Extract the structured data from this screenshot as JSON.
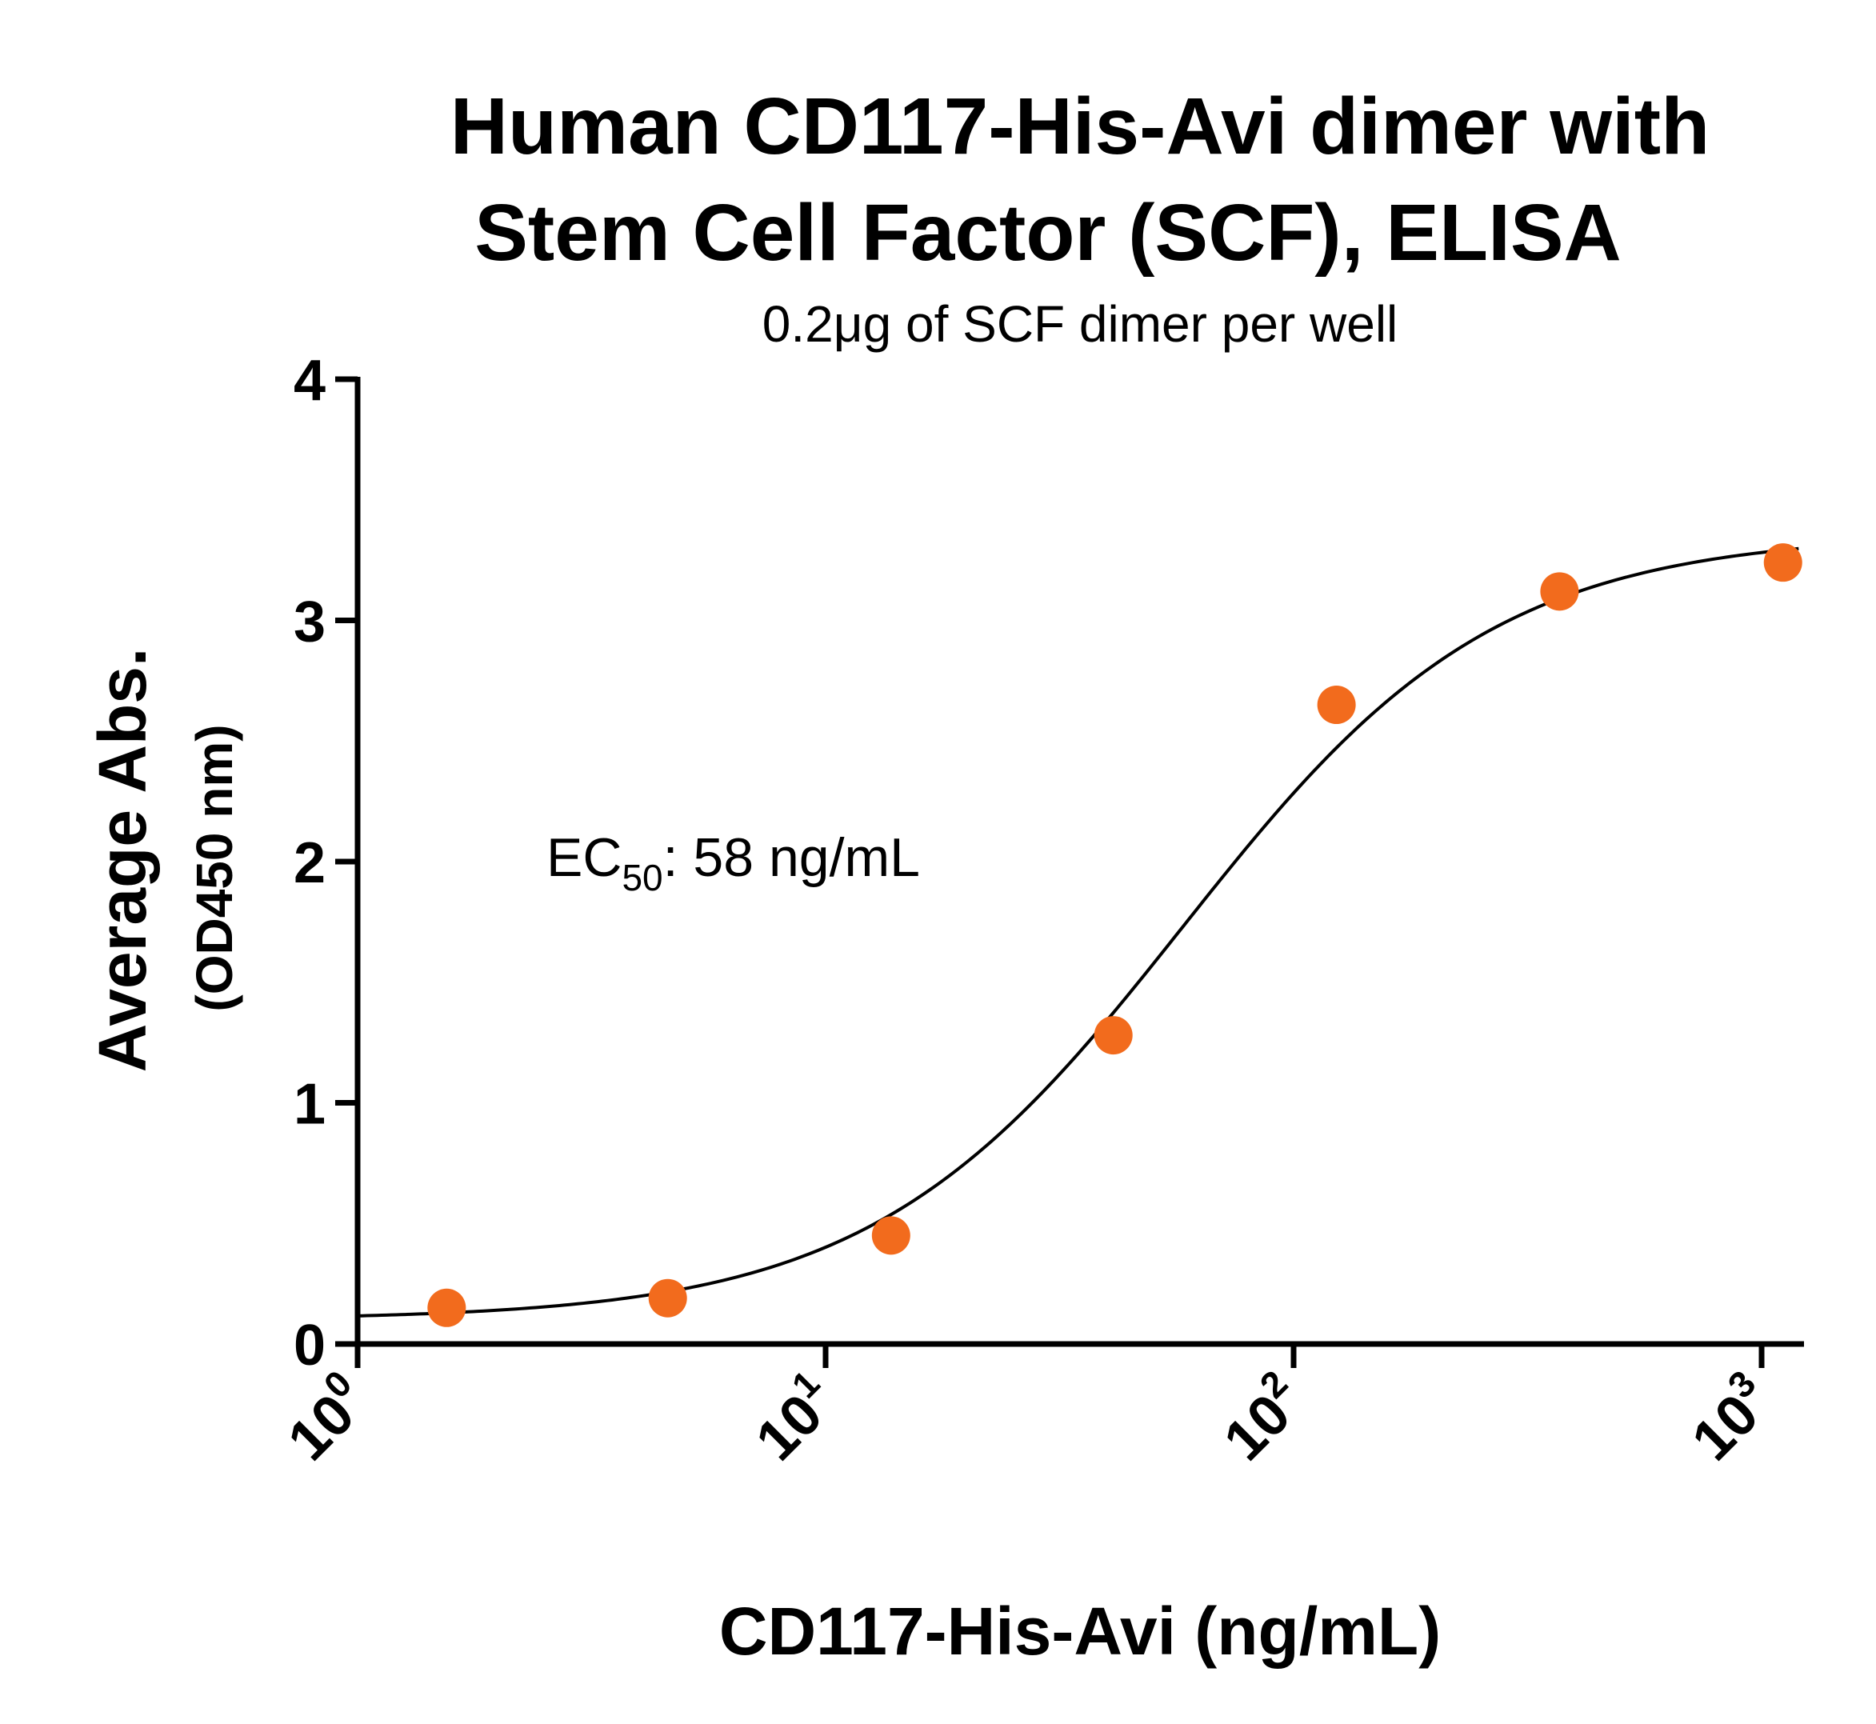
{
  "chart_data": {
    "type": "scatter",
    "title_line1": "Human CD117-His-Avi dimer with",
    "title_line2": "Stem Cell Factor (SCF), ELISA",
    "subtitle": "0.2μg of SCF dimer per well",
    "xlabel": "CD117-His-Avi  (ng/mL)",
    "ylabel": "Average Abs.",
    "ylabel_sub": "(OD450 nm)",
    "x_scale": "log10",
    "xlim": [
      1,
      1200
    ],
    "ylim": [
      0,
      4
    ],
    "y_ticks": [
      "0",
      "1",
      "2",
      "3",
      "4"
    ],
    "x_ticks": [
      {
        "base": "10",
        "exp": "0"
      },
      {
        "base": "10",
        "exp": "1"
      },
      {
        "base": "10",
        "exp": "2"
      },
      {
        "base": "10",
        "exp": "3"
      }
    ],
    "grid": false,
    "series": [
      {
        "color": "#f26b1d",
        "x": [
          1.55,
          4.6,
          13.8,
          41.2,
          123.5,
          370,
          1111
        ],
        "y": [
          0.15,
          0.19,
          0.45,
          1.28,
          2.65,
          3.12,
          3.24
        ]
      }
    ],
    "fit_curve": {
      "model": "4PL",
      "color": "#000000",
      "bottom": 0.1,
      "top": 3.36,
      "ec50": 58,
      "hill": 1.3
    },
    "annotation": {
      "prefix": "EC",
      "subscript": "50",
      "suffix": ": 58 ng/mL"
    }
  }
}
